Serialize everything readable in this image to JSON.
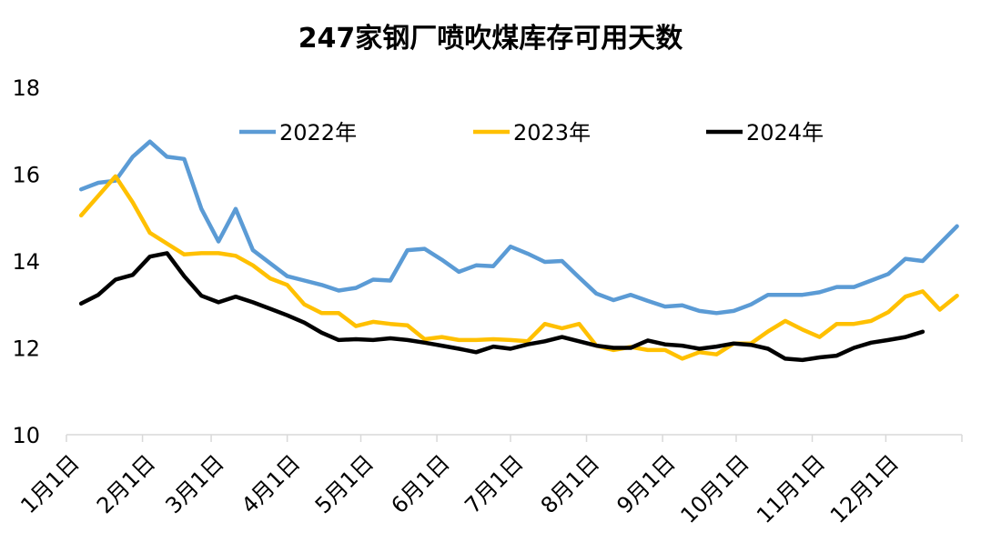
{
  "chart_data": {
    "type": "line",
    "title": "247家钢厂喷吹煤库存可用天数",
    "xlabel": "",
    "ylabel": "",
    "ylim": [
      10,
      18
    ],
    "yticks": [
      10,
      12,
      14,
      16,
      18
    ],
    "xlim_day": [
      1,
      366
    ],
    "xticks": [
      {
        "label": "1月1日",
        "day": 1
      },
      {
        "label": "2月1日",
        "day": 32
      },
      {
        "label": "3月1日",
        "day": 60
      },
      {
        "label": "4月1日",
        "day": 91
      },
      {
        "label": "5月1日",
        "day": 121
      },
      {
        "label": "6月1日",
        "day": 152
      },
      {
        "label": "7月1日",
        "day": 182
      },
      {
        "label": "8月1日",
        "day": 213
      },
      {
        "label": "9月1日",
        "day": 244
      },
      {
        "label": "10月1日",
        "day": 274
      },
      {
        "label": "11月1日",
        "day": 305
      },
      {
        "label": "12月1日",
        "day": 335
      }
    ],
    "legend_position": "top",
    "series": [
      {
        "name": "2022年",
        "color": "#5B9BD5",
        "x": [
          7,
          14,
          21,
          28,
          35,
          42,
          49,
          56,
          63,
          70,
          77,
          84,
          91,
          98,
          105,
          112,
          119,
          126,
          133,
          140,
          147,
          154,
          161,
          168,
          175,
          182,
          189,
          196,
          203,
          210,
          217,
          224,
          231,
          238,
          245,
          252,
          259,
          266,
          273,
          280,
          287,
          294,
          301,
          308,
          315,
          322,
          329,
          336,
          343,
          350,
          357,
          364
        ],
        "values": [
          15.65,
          15.8,
          15.85,
          16.4,
          16.75,
          16.4,
          16.35,
          15.2,
          14.45,
          15.2,
          14.25,
          13.95,
          13.65,
          13.55,
          13.45,
          13.32,
          13.38,
          13.57,
          13.55,
          14.25,
          14.28,
          14.03,
          13.75,
          13.9,
          13.88,
          14.33,
          14.17,
          13.98,
          14.0,
          13.62,
          13.25,
          13.1,
          13.22,
          13.08,
          12.95,
          12.98,
          12.85,
          12.8,
          12.85,
          13.0,
          13.22,
          13.22,
          13.22,
          13.28,
          13.4,
          13.4,
          13.55,
          13.7,
          14.05,
          14.0,
          14.4,
          14.8
        ]
      },
      {
        "name": "2023年",
        "color": "#FFC000",
        "x": [
          7,
          14,
          21,
          28,
          35,
          42,
          49,
          56,
          63,
          70,
          77,
          84,
          91,
          98,
          105,
          112,
          119,
          126,
          133,
          140,
          147,
          154,
          161,
          168,
          175,
          182,
          189,
          196,
          203,
          210,
          217,
          224,
          231,
          238,
          245,
          252,
          259,
          266,
          273,
          280,
          287,
          294,
          301,
          308,
          315,
          322,
          329,
          336,
          343,
          350,
          357,
          364
        ],
        "values": [
          15.05,
          15.5,
          15.95,
          15.35,
          14.65,
          14.4,
          14.15,
          14.18,
          14.18,
          14.12,
          13.9,
          13.6,
          13.45,
          13.0,
          12.8,
          12.8,
          12.5,
          12.6,
          12.55,
          12.52,
          12.2,
          12.25,
          12.18,
          12.18,
          12.2,
          12.18,
          12.15,
          12.55,
          12.45,
          12.55,
          12.05,
          11.95,
          12.02,
          11.95,
          11.95,
          11.75,
          11.9,
          11.85,
          12.1,
          12.1,
          12.38,
          12.62,
          12.42,
          12.25,
          12.55,
          12.55,
          12.62,
          12.82,
          13.18,
          13.3,
          12.88,
          13.2
        ]
      },
      {
        "name": "2024年",
        "color": "#000000",
        "x": [
          7,
          14,
          21,
          28,
          35,
          42,
          49,
          56,
          63,
          70,
          77,
          84,
          91,
          98,
          105,
          112,
          119,
          126,
          133,
          140,
          147,
          154,
          161,
          168,
          175,
          182,
          189,
          196,
          203,
          210,
          217,
          224,
          231,
          238,
          245,
          252,
          259,
          266,
          273,
          280,
          287,
          294,
          301,
          308,
          315,
          322,
          329,
          336,
          343,
          350
        ],
        "values": [
          13.02,
          13.22,
          13.57,
          13.68,
          14.1,
          14.18,
          13.65,
          13.2,
          13.05,
          13.18,
          13.05,
          12.9,
          12.75,
          12.58,
          12.35,
          12.18,
          12.2,
          12.18,
          12.22,
          12.18,
          12.12,
          12.05,
          11.98,
          11.9,
          12.03,
          11.98,
          12.08,
          12.15,
          12.25,
          12.15,
          12.05,
          12.0,
          12.0,
          12.17,
          12.08,
          12.05,
          11.98,
          12.03,
          12.1,
          12.07,
          11.98,
          11.75,
          11.72,
          11.78,
          11.82,
          12.0,
          12.12,
          12.18,
          12.25,
          12.37
        ]
      }
    ]
  }
}
